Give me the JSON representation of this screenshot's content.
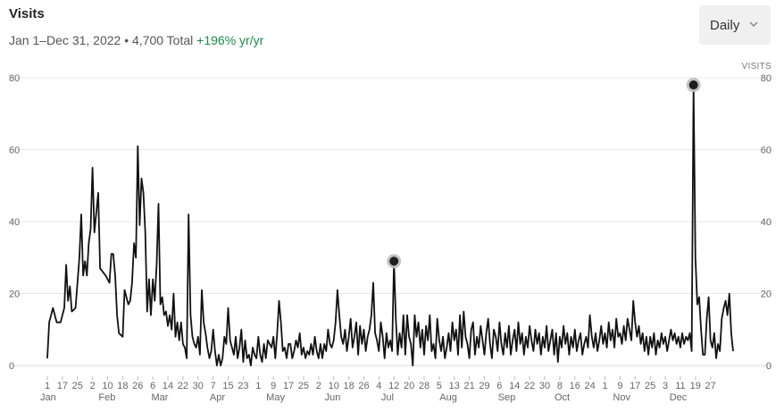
{
  "header": {
    "title": "Visits",
    "range": "Jan 1–Dec 31, 2022",
    "separator": "•",
    "total": "4,700 Total",
    "growth": "+196% yr/yr",
    "growth_color": "#1a8a4a"
  },
  "dropdown": {
    "label": "Daily",
    "icon": "chevron-down-icon"
  },
  "chart_data": {
    "type": "line",
    "title": "Visits",
    "ylabel": "VISITS",
    "ylim": [
      0,
      80
    ],
    "yticks": [
      0,
      20,
      40,
      60,
      80
    ],
    "grid": true,
    "x_start": "2022-01-01",
    "x_end": "2022-12-31",
    "week_ticks": [
      "1",
      "17",
      "25",
      "2",
      "10",
      "18",
      "26",
      "6",
      "14",
      "22",
      "30",
      "7",
      "15",
      "23",
      "1",
      "9",
      "17",
      "25",
      "2",
      "10",
      "18",
      "26",
      "4",
      "12",
      "20",
      "28",
      "5",
      "13",
      "21",
      "29",
      "6",
      "14",
      "22",
      "30",
      "8",
      "16",
      "24",
      "1",
      "9",
      "17",
      "25",
      "3",
      "11",
      "19",
      "27"
    ],
    "month_labels": [
      "Jan",
      "Feb",
      "Mar",
      "Apr",
      "May",
      "Jun",
      "Jul",
      "Aug",
      "Sep",
      "Oct",
      "Nov",
      "Dec"
    ],
    "highlights": [
      {
        "date": "2022-07-04",
        "value": 29
      },
      {
        "date": "2022-12-10",
        "value": 78
      }
    ],
    "points": [
      [
        "2022-01-01",
        2
      ],
      [
        "2022-01-02",
        12
      ],
      [
        "2022-01-04",
        16
      ],
      [
        "2022-01-06",
        12
      ],
      [
        "2022-01-08",
        12
      ],
      [
        "2022-01-10",
        16
      ],
      [
        "2022-01-11",
        28
      ],
      [
        "2022-01-12",
        18
      ],
      [
        "2022-01-13",
        22
      ],
      [
        "2022-01-14",
        15
      ],
      [
        "2022-01-16",
        16
      ],
      [
        "2022-01-18",
        30
      ],
      [
        "2022-01-19",
        42
      ],
      [
        "2022-01-20",
        25
      ],
      [
        "2022-01-21",
        29
      ],
      [
        "2022-01-22",
        25
      ],
      [
        "2022-01-23",
        34
      ],
      [
        "2022-01-24",
        38
      ],
      [
        "2022-01-25",
        55
      ],
      [
        "2022-01-26",
        37
      ],
      [
        "2022-01-28",
        48
      ],
      [
        "2022-01-29",
        27
      ],
      [
        "2022-02-01",
        25
      ],
      [
        "2022-02-03",
        23
      ],
      [
        "2022-02-04",
        31
      ],
      [
        "2022-02-05",
        31
      ],
      [
        "2022-02-06",
        25
      ],
      [
        "2022-02-07",
        14
      ],
      [
        "2022-02-08",
        9
      ],
      [
        "2022-02-10",
        8
      ],
      [
        "2022-02-11",
        21
      ],
      [
        "2022-02-13",
        17
      ],
      [
        "2022-02-14",
        18
      ],
      [
        "2022-02-15",
        23
      ],
      [
        "2022-02-16",
        34
      ],
      [
        "2022-02-17",
        30
      ],
      [
        "2022-02-18",
        61
      ],
      [
        "2022-02-19",
        39
      ],
      [
        "2022-02-20",
        52
      ],
      [
        "2022-02-21",
        48
      ],
      [
        "2022-02-22",
        37
      ],
      [
        "2022-02-23",
        15
      ],
      [
        "2022-02-24",
        24
      ],
      [
        "2022-02-25",
        14
      ],
      [
        "2022-02-26",
        24
      ],
      [
        "2022-02-27",
        18
      ],
      [
        "2022-02-28",
        28
      ],
      [
        "2022-03-01",
        45
      ],
      [
        "2022-03-02",
        17
      ],
      [
        "2022-03-03",
        19
      ],
      [
        "2022-03-04",
        14
      ],
      [
        "2022-03-05",
        15
      ],
      [
        "2022-03-06",
        11
      ],
      [
        "2022-03-07",
        14
      ],
      [
        "2022-03-08",
        10
      ],
      [
        "2022-03-09",
        20
      ],
      [
        "2022-03-10",
        8
      ],
      [
        "2022-03-11",
        12
      ],
      [
        "2022-03-12",
        7
      ],
      [
        "2022-03-13",
        12
      ],
      [
        "2022-03-14",
        6
      ],
      [
        "2022-03-15",
        5
      ],
      [
        "2022-03-16",
        2
      ],
      [
        "2022-03-17",
        42
      ],
      [
        "2022-03-18",
        14
      ],
      [
        "2022-03-19",
        8
      ],
      [
        "2022-03-20",
        6
      ],
      [
        "2022-03-21",
        5
      ],
      [
        "2022-03-22",
        8
      ],
      [
        "2022-03-23",
        3
      ],
      [
        "2022-03-24",
        21
      ],
      [
        "2022-03-25",
        12
      ],
      [
        "2022-03-26",
        9
      ],
      [
        "2022-03-27",
        5
      ],
      [
        "2022-03-28",
        2
      ],
      [
        "2022-03-29",
        4
      ],
      [
        "2022-03-30",
        10
      ],
      [
        "2022-03-31",
        4
      ],
      [
        "2022-04-01",
        0
      ],
      [
        "2022-04-02",
        3
      ],
      [
        "2022-04-03",
        0
      ],
      [
        "2022-04-04",
        2
      ],
      [
        "2022-04-05",
        8
      ],
      [
        "2022-04-06",
        6
      ],
      [
        "2022-04-07",
        16
      ],
      [
        "2022-04-08",
        7
      ],
      [
        "2022-04-09",
        5
      ],
      [
        "2022-04-10",
        3
      ],
      [
        "2022-04-11",
        8
      ],
      [
        "2022-04-12",
        2
      ],
      [
        "2022-04-13",
        5
      ],
      [
        "2022-04-14",
        10
      ],
      [
        "2022-04-15",
        1
      ],
      [
        "2022-04-16",
        7
      ],
      [
        "2022-04-17",
        2
      ],
      [
        "2022-04-18",
        3
      ],
      [
        "2022-04-19",
        0
      ],
      [
        "2022-04-20",
        5
      ],
      [
        "2022-04-21",
        3
      ],
      [
        "2022-04-22",
        2
      ],
      [
        "2022-04-23",
        8
      ],
      [
        "2022-04-24",
        3
      ],
      [
        "2022-04-25",
        1
      ],
      [
        "2022-04-26",
        6
      ],
      [
        "2022-04-27",
        2
      ],
      [
        "2022-04-28",
        7
      ],
      [
        "2022-04-29",
        6
      ],
      [
        "2022-04-30",
        5
      ],
      [
        "2022-05-01",
        8
      ],
      [
        "2022-05-02",
        2
      ],
      [
        "2022-05-03",
        9
      ],
      [
        "2022-05-04",
        18
      ],
      [
        "2022-05-05",
        12
      ],
      [
        "2022-05-06",
        4
      ],
      [
        "2022-05-07",
        5
      ],
      [
        "2022-05-08",
        2
      ],
      [
        "2022-05-09",
        6
      ],
      [
        "2022-05-10",
        6
      ],
      [
        "2022-05-11",
        2
      ],
      [
        "2022-05-12",
        4
      ],
      [
        "2022-05-13",
        7
      ],
      [
        "2022-05-14",
        5
      ],
      [
        "2022-05-15",
        9
      ],
      [
        "2022-05-16",
        3
      ],
      [
        "2022-05-17",
        5
      ],
      [
        "2022-05-18",
        2
      ],
      [
        "2022-05-19",
        4
      ],
      [
        "2022-05-20",
        3
      ],
      [
        "2022-05-21",
        6
      ],
      [
        "2022-05-22",
        3
      ],
      [
        "2022-05-23",
        8
      ],
      [
        "2022-05-24",
        4
      ],
      [
        "2022-05-25",
        2
      ],
      [
        "2022-05-26",
        6
      ],
      [
        "2022-05-27",
        2
      ],
      [
        "2022-05-28",
        6
      ],
      [
        "2022-05-29",
        4
      ],
      [
        "2022-05-30",
        10
      ],
      [
        "2022-05-31",
        6
      ],
      [
        "2022-06-01",
        5
      ],
      [
        "2022-06-02",
        7
      ],
      [
        "2022-06-03",
        12
      ],
      [
        "2022-06-04",
        21
      ],
      [
        "2022-06-05",
        14
      ],
      [
        "2022-06-06",
        8
      ],
      [
        "2022-06-07",
        6
      ],
      [
        "2022-06-08",
        10
      ],
      [
        "2022-06-09",
        4
      ],
      [
        "2022-06-10",
        8
      ],
      [
        "2022-06-11",
        13
      ],
      [
        "2022-06-12",
        5
      ],
      [
        "2022-06-13",
        8
      ],
      [
        "2022-06-14",
        12
      ],
      [
        "2022-06-15",
        3
      ],
      [
        "2022-06-16",
        11
      ],
      [
        "2022-06-17",
        6
      ],
      [
        "2022-06-18",
        10
      ],
      [
        "2022-06-19",
        4
      ],
      [
        "2022-06-20",
        8
      ],
      [
        "2022-06-21",
        10
      ],
      [
        "2022-06-22",
        14
      ],
      [
        "2022-06-23",
        23
      ],
      [
        "2022-06-24",
        9
      ],
      [
        "2022-06-25",
        7
      ],
      [
        "2022-06-26",
        4
      ],
      [
        "2022-06-27",
        12
      ],
      [
        "2022-06-28",
        8
      ],
      [
        "2022-06-29",
        2
      ],
      [
        "2022-06-30",
        9
      ],
      [
        "2022-07-01",
        5
      ],
      [
        "2022-07-02",
        7
      ],
      [
        "2022-07-03",
        4
      ],
      [
        "2022-07-04",
        29
      ],
      [
        "2022-07-05",
        13
      ],
      [
        "2022-07-06",
        3
      ],
      [
        "2022-07-07",
        9
      ],
      [
        "2022-07-08",
        5
      ],
      [
        "2022-07-09",
        14
      ],
      [
        "2022-07-10",
        3
      ],
      [
        "2022-07-11",
        14
      ],
      [
        "2022-07-12",
        8
      ],
      [
        "2022-07-13",
        6
      ],
      [
        "2022-07-14",
        0
      ],
      [
        "2022-07-15",
        14
      ],
      [
        "2022-07-16",
        8
      ],
      [
        "2022-07-17",
        12
      ],
      [
        "2022-07-18",
        5
      ],
      [
        "2022-07-19",
        10
      ],
      [
        "2022-07-20",
        3
      ],
      [
        "2022-07-21",
        11
      ],
      [
        "2022-07-22",
        7
      ],
      [
        "2022-07-23",
        14
      ],
      [
        "2022-07-24",
        4
      ],
      [
        "2022-07-25",
        6
      ],
      [
        "2022-07-26",
        2
      ],
      [
        "2022-07-27",
        13
      ],
      [
        "2022-07-28",
        7
      ],
      [
        "2022-07-29",
        4
      ],
      [
        "2022-07-30",
        8
      ],
      [
        "2022-07-31",
        2
      ],
      [
        "2022-08-01",
        5
      ],
      [
        "2022-08-02",
        9
      ],
      [
        "2022-08-03",
        4
      ],
      [
        "2022-08-04",
        12
      ],
      [
        "2022-08-05",
        7
      ],
      [
        "2022-08-06",
        10
      ],
      [
        "2022-08-07",
        3
      ],
      [
        "2022-08-08",
        14
      ],
      [
        "2022-08-09",
        5
      ],
      [
        "2022-08-10",
        15
      ],
      [
        "2022-08-11",
        8
      ],
      [
        "2022-08-12",
        6
      ],
      [
        "2022-08-13",
        2
      ],
      [
        "2022-08-14",
        10
      ],
      [
        "2022-08-15",
        12
      ],
      [
        "2022-08-16",
        3
      ],
      [
        "2022-08-17",
        8
      ],
      [
        "2022-08-18",
        5
      ],
      [
        "2022-08-19",
        11
      ],
      [
        "2022-08-20",
        7
      ],
      [
        "2022-08-21",
        3
      ],
      [
        "2022-08-22",
        9
      ],
      [
        "2022-08-23",
        13
      ],
      [
        "2022-08-24",
        6
      ],
      [
        "2022-08-25",
        2
      ],
      [
        "2022-08-26",
        10
      ],
      [
        "2022-08-27",
        8
      ],
      [
        "2022-08-28",
        4
      ],
      [
        "2022-08-29",
        12
      ],
      [
        "2022-08-30",
        6
      ],
      [
        "2022-08-31",
        3
      ],
      [
        "2022-09-01",
        9
      ],
      [
        "2022-09-02",
        5
      ],
      [
        "2022-09-03",
        11
      ],
      [
        "2022-09-04",
        3
      ],
      [
        "2022-09-05",
        7
      ],
      [
        "2022-09-06",
        10
      ],
      [
        "2022-09-07",
        4
      ],
      [
        "2022-09-08",
        12
      ],
      [
        "2022-09-09",
        6
      ],
      [
        "2022-09-10",
        9
      ],
      [
        "2022-09-11",
        3
      ],
      [
        "2022-09-12",
        8
      ],
      [
        "2022-09-13",
        5
      ],
      [
        "2022-09-14",
        11
      ],
      [
        "2022-09-15",
        7
      ],
      [
        "2022-09-16",
        4
      ],
      [
        "2022-09-17",
        10
      ],
      [
        "2022-09-18",
        6
      ],
      [
        "2022-09-19",
        9
      ],
      [
        "2022-09-20",
        3
      ],
      [
        "2022-09-21",
        8
      ],
      [
        "2022-09-22",
        5
      ],
      [
        "2022-09-23",
        11
      ],
      [
        "2022-09-24",
        4
      ],
      [
        "2022-09-25",
        7
      ],
      [
        "2022-09-26",
        10
      ],
      [
        "2022-09-27",
        3
      ],
      [
        "2022-09-28",
        9
      ],
      [
        "2022-09-29",
        1
      ],
      [
        "2022-09-30",
        8
      ],
      [
        "2022-10-01",
        5
      ],
      [
        "2022-10-02",
        11
      ],
      [
        "2022-10-03",
        6
      ],
      [
        "2022-10-04",
        9
      ],
      [
        "2022-10-05",
        3
      ],
      [
        "2022-10-06",
        8
      ],
      [
        "2022-10-07",
        5
      ],
      [
        "2022-10-08",
        10
      ],
      [
        "2022-10-09",
        4
      ],
      [
        "2022-10-10",
        7
      ],
      [
        "2022-10-11",
        9
      ],
      [
        "2022-10-12",
        3
      ],
      [
        "2022-10-13",
        6
      ],
      [
        "2022-10-14",
        8
      ],
      [
        "2022-10-15",
        5
      ],
      [
        "2022-10-16",
        14
      ],
      [
        "2022-10-17",
        8
      ],
      [
        "2022-10-18",
        5
      ],
      [
        "2022-10-19",
        9
      ],
      [
        "2022-10-20",
        4
      ],
      [
        "2022-10-21",
        7
      ],
      [
        "2022-10-22",
        11
      ],
      [
        "2022-10-23",
        6
      ],
      [
        "2022-10-24",
        9
      ],
      [
        "2022-10-25",
        5
      ],
      [
        "2022-10-26",
        12
      ],
      [
        "2022-10-27",
        7
      ],
      [
        "2022-10-28",
        10
      ],
      [
        "2022-10-29",
        5
      ],
      [
        "2022-10-30",
        13
      ],
      [
        "2022-10-31",
        8
      ],
      [
        "2022-11-01",
        9
      ],
      [
        "2022-11-02",
        6
      ],
      [
        "2022-11-03",
        11
      ],
      [
        "2022-11-04",
        7
      ],
      [
        "2022-11-05",
        13
      ],
      [
        "2022-11-06",
        10
      ],
      [
        "2022-11-07",
        7
      ],
      [
        "2022-11-08",
        18
      ],
      [
        "2022-11-09",
        12
      ],
      [
        "2022-11-10",
        8
      ],
      [
        "2022-11-11",
        11
      ],
      [
        "2022-11-12",
        6
      ],
      [
        "2022-11-13",
        9
      ],
      [
        "2022-11-14",
        4
      ],
      [
        "2022-11-15",
        8
      ],
      [
        "2022-11-16",
        3
      ],
      [
        "2022-11-17",
        8
      ],
      [
        "2022-11-18",
        5
      ],
      [
        "2022-11-19",
        9
      ],
      [
        "2022-11-20",
        3
      ],
      [
        "2022-11-21",
        7
      ],
      [
        "2022-11-22",
        5
      ],
      [
        "2022-11-23",
        9
      ],
      [
        "2022-11-24",
        6
      ],
      [
        "2022-11-25",
        8
      ],
      [
        "2022-11-26",
        4
      ],
      [
        "2022-11-27",
        7
      ],
      [
        "2022-11-28",
        10
      ],
      [
        "2022-11-29",
        7
      ],
      [
        "2022-11-30",
        9
      ],
      [
        "2022-12-01",
        6
      ],
      [
        "2022-12-02",
        8
      ],
      [
        "2022-12-03",
        5
      ],
      [
        "2022-12-04",
        9
      ],
      [
        "2022-12-05",
        6
      ],
      [
        "2022-12-06",
        8
      ],
      [
        "2022-12-07",
        7
      ],
      [
        "2022-12-08",
        9
      ],
      [
        "2022-12-09",
        4
      ],
      [
        "2022-12-10",
        78
      ],
      [
        "2022-12-11",
        30
      ],
      [
        "2022-12-12",
        17
      ],
      [
        "2022-12-13",
        19
      ],
      [
        "2022-12-14",
        10
      ],
      [
        "2022-12-15",
        3
      ],
      [
        "2022-12-16",
        3
      ],
      [
        "2022-12-17",
        13
      ],
      [
        "2022-12-18",
        19
      ],
      [
        "2022-12-19",
        7
      ],
      [
        "2022-12-20",
        5
      ],
      [
        "2022-12-21",
        9
      ],
      [
        "2022-12-22",
        2
      ],
      [
        "2022-12-23",
        6
      ],
      [
        "2022-12-24",
        4
      ],
      [
        "2022-12-25",
        13
      ],
      [
        "2022-12-26",
        16
      ],
      [
        "2022-12-27",
        18
      ],
      [
        "2022-12-28",
        14
      ],
      [
        "2022-12-29",
        20
      ],
      [
        "2022-12-30",
        9
      ],
      [
        "2022-12-31",
        4
      ]
    ]
  }
}
